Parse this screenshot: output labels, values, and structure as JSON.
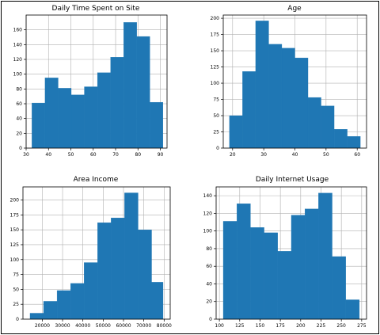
{
  "chart_data": [
    {
      "type": "bar",
      "title": "Daily Time Spent on Site",
      "bin_edges": [
        32.6,
        38.46,
        44.32,
        50.17,
        56.03,
        61.89,
        67.75,
        73.61,
        79.46,
        85.32,
        91.18
      ],
      "values": [
        61,
        95,
        81,
        72,
        83,
        102,
        123,
        170,
        151,
        62
      ],
      "xlim": [
        30,
        93
      ],
      "ylim": [
        0,
        180
      ],
      "xticks": [
        30,
        40,
        50,
        60,
        70,
        80,
        90
      ],
      "yticks": [
        0,
        20,
        40,
        60,
        80,
        100,
        120,
        140,
        160
      ],
      "grid": true
    },
    {
      "type": "bar",
      "title": "Age",
      "bin_edges": [
        19,
        23.2,
        27.4,
        31.6,
        35.8,
        40,
        44.2,
        48.4,
        52.6,
        56.8,
        61
      ],
      "values": [
        50,
        118,
        196,
        160,
        154,
        139,
        78,
        65,
        29,
        18
      ],
      "xlim": [
        17,
        63
      ],
      "ylim": [
        0,
        205
      ],
      "xticks": [
        20,
        30,
        40,
        50,
        60
      ],
      "yticks": [
        0,
        25,
        50,
        75,
        100,
        125,
        150,
        175,
        200
      ],
      "grid": true
    },
    {
      "type": "bar",
      "title": "Area Income",
      "bin_edges": [
        13996,
        20646,
        27296,
        33946,
        40596,
        47246,
        53896,
        60546,
        67196,
        73846,
        79485
      ],
      "values": [
        10,
        30,
        48,
        60,
        95,
        162,
        170,
        212,
        150,
        62
      ],
      "xlim": [
        10500,
        83000
      ],
      "ylim": [
        0,
        222
      ],
      "xticks": [
        20000,
        30000,
        40000,
        50000,
        60000,
        70000,
        80000
      ],
      "yticks": [
        0,
        25,
        50,
        75,
        100,
        125,
        150,
        175,
        200
      ],
      "grid": true
    },
    {
      "type": "bar",
      "title": "Daily Internet Usage",
      "bin_edges": [
        104.78,
        121.52,
        138.26,
        155,
        171.74,
        188.48,
        205.22,
        221.96,
        238.7,
        255.44,
        272.18
      ],
      "values": [
        111,
        131,
        104,
        98,
        77,
        118,
        125,
        143,
        71,
        22
      ],
      "xlim": [
        96,
        281
      ],
      "ylim": [
        0,
        150
      ],
      "xticks": [
        100,
        125,
        150,
        175,
        200,
        225,
        250,
        275
      ],
      "yticks": [
        0,
        20,
        40,
        60,
        80,
        100,
        120,
        140
      ],
      "grid": true
    }
  ]
}
